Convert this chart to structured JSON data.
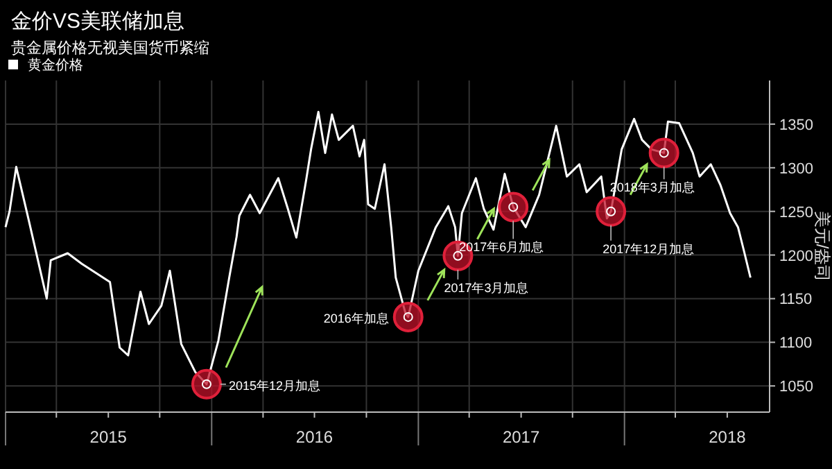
{
  "chart_data": {
    "type": "line",
    "title": "金价VS美联储加息",
    "subtitle": "贵金属价格无视美国货币紧缩",
    "ylabel": "美元/盎司",
    "x": [
      "2015-01-01",
      "2015-01-08",
      "2015-01-20",
      "2015-02-11",
      "2015-03-15",
      "2015-03-22",
      "2015-04-21",
      "2015-05-16",
      "2015-07-05",
      "2015-07-22",
      "2015-08-06",
      "2015-08-28",
      "2015-09-12",
      "2015-10-04",
      "2015-10-19",
      "2015-11-08",
      "2015-12-03",
      "2015-12-23",
      "2016-01-13",
      "2016-02-01",
      "2016-02-14",
      "2016-02-19",
      "2016-03-09",
      "2016-03-26",
      "2016-04-28",
      "2016-05-15",
      "2016-05-30",
      "2016-06-16",
      "2016-06-25",
      "2016-07-08",
      "2016-07-20",
      "2016-08-01",
      "2016-08-13",
      "2016-09-07",
      "2016-09-19",
      "2016-09-27",
      "2016-10-04",
      "2016-10-16",
      "2016-11-02",
      "2016-11-14",
      "2016-11-22",
      "2016-12-09",
      "2016-12-14",
      "2017-01-01",
      "2017-02-01",
      "2017-02-23",
      "2017-03-07",
      "2017-03-12",
      "2017-03-19",
      "2017-04-13",
      "2017-04-27",
      "2017-05-14",
      "2017-06-03",
      "2017-06-18",
      "2017-07-10",
      "2017-08-03",
      "2017-09-02",
      "2017-09-21",
      "2017-10-13",
      "2017-10-26",
      "2017-11-21",
      "2017-12-01",
      "2017-12-08",
      "2017-12-27",
      "2018-01-18",
      "2018-02-01",
      "2018-02-18",
      "2018-03-12",
      "2018-03-19",
      "2018-04-08",
      "2018-05-02",
      "2018-05-14",
      "2018-06-03",
      "2018-06-20",
      "2018-07-07",
      "2018-07-21",
      "2018-07-31",
      "2018-08-12"
    ],
    "series": [
      {
        "name": "黄金价格",
        "color": "#ffffff",
        "values": [
          1232,
          1250,
          1301,
          1240,
          1150,
          1194,
          1202,
          1190,
          1169,
          1094,
          1085,
          1158,
          1121,
          1142,
          1182,
          1098,
          1066,
          1052,
          1102,
          1174,
          1221,
          1245,
          1269,
          1248,
          1288,
          1253,
          1220,
          1285,
          1321,
          1364,
          1317,
          1361,
          1332,
          1348,
          1313,
          1332,
          1258,
          1253,
          1304,
          1232,
          1174,
          1134,
          1129,
          1182,
          1232,
          1256,
          1232,
          1199,
          1248,
          1288,
          1253,
          1229,
          1293,
          1255,
          1232,
          1269,
          1348,
          1290,
          1304,
          1272,
          1290,
          1242,
          1250,
          1321,
          1356,
          1332,
          1321,
          1317,
          1353,
          1351,
          1317,
          1290,
          1304,
          1280,
          1248,
          1232,
          1206,
          1174
        ]
      }
    ],
    "xlim": [
      "2015-01-01",
      "2018-09-15"
    ],
    "xticks": [
      {
        "value": "2015-01-01",
        "label": null
      },
      {
        "value": "2015-04-01",
        "label": null
      },
      {
        "value": "2015-07-02",
        "label": "2015"
      },
      {
        "value": "2015-10-01",
        "label": null
      },
      {
        "value": "2016-01-01",
        "label": null
      },
      {
        "value": "2016-04-01",
        "label": null
      },
      {
        "value": "2016-07-01",
        "label": "2016"
      },
      {
        "value": "2016-10-01",
        "label": null
      },
      {
        "value": "2017-01-01",
        "label": null
      },
      {
        "value": "2017-04-01",
        "label": null
      },
      {
        "value": "2017-07-02",
        "label": "2017"
      },
      {
        "value": "2017-10-01",
        "label": null
      },
      {
        "value": "2018-01-01",
        "label": null
      },
      {
        "value": "2018-04-01",
        "label": null
      },
      {
        "value": "2018-07-02",
        "label": "2018"
      }
    ],
    "ylim": [
      1020,
      1400
    ],
    "yticks": [
      1050,
      1100,
      1150,
      1200,
      1250,
      1300,
      1350
    ],
    "grid": true,
    "legend": "top left",
    "marker": "none",
    "line_style": "solid",
    "annotations": [
      {
        "text": "2015年12月加息",
        "x": "2015-12-23",
        "y": 1052
      },
      {
        "text": "2016年加息",
        "x": "2016-12-14",
        "y": 1129
      },
      {
        "text": "2017年3月加息",
        "x": "2017-03-12",
        "y": 1199
      },
      {
        "text": "2017年6月加息",
        "x": "2017-06-18",
        "y": 1255
      },
      {
        "text": "2017年12月加息",
        "x": "2017-12-08",
        "y": 1250
      },
      {
        "text": "2018年3月加息",
        "x": "2018-03-12",
        "y": 1317
      }
    ]
  }
}
